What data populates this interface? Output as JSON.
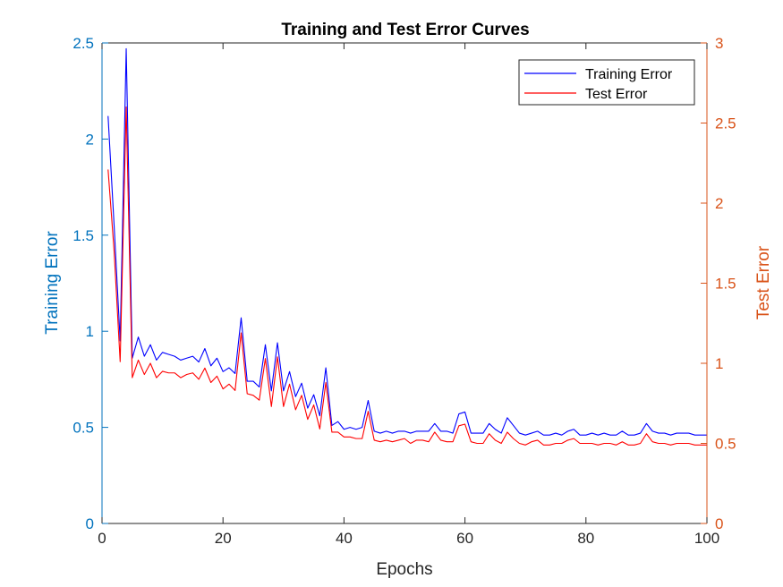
{
  "chart_data": {
    "type": "line",
    "title": "Training and Test Error Curves",
    "xlabel": "Epochs",
    "ylabel_left": "Training Error",
    "ylabel_right": "Test Error",
    "xlim": [
      0,
      100
    ],
    "ylim_left": [
      0,
      2.5
    ],
    "ylim_right": [
      0,
      3
    ],
    "x_ticks": [
      0,
      20,
      40,
      60,
      80,
      100
    ],
    "y_ticks_left": [
      0,
      0.5,
      1,
      1.5,
      2,
      2.5
    ],
    "y_ticks_right": [
      0,
      0.5,
      1,
      1.5,
      2,
      2.5,
      3
    ],
    "x_tick_labels": [
      "0",
      "20",
      "40",
      "60",
      "80",
      "100"
    ],
    "y_tick_labels_left": [
      "0",
      "0.5",
      "1",
      "1.5",
      "2",
      "2.5"
    ],
    "y_tick_labels_right": [
      "0",
      "0.5",
      "1",
      "1.5",
      "2",
      "2.5",
      "3"
    ],
    "grid": false,
    "legend_position": "top-right",
    "colors": {
      "left_axis": "#0072BD",
      "right_axis": "#D95319",
      "training": "#0000FF",
      "test": "#FF0000"
    },
    "series": [
      {
        "name": "Training Error",
        "axis": "left",
        "color": "#0000FF",
        "values": [
          2.12,
          1.55,
          0.95,
          2.47,
          0.86,
          0.97,
          0.87,
          0.93,
          0.85,
          0.89,
          0.88,
          0.87,
          0.85,
          0.86,
          0.87,
          0.84,
          0.91,
          0.82,
          0.86,
          0.79,
          0.81,
          0.78,
          1.07,
          0.74,
          0.74,
          0.71,
          0.93,
          0.69,
          0.94,
          0.69,
          0.79,
          0.66,
          0.73,
          0.6,
          0.67,
          0.56,
          0.81,
          0.51,
          0.53,
          0.49,
          0.5,
          0.49,
          0.5,
          0.64,
          0.48,
          0.47,
          0.48,
          0.47,
          0.48,
          0.48,
          0.47,
          0.48,
          0.48,
          0.48,
          0.52,
          0.48,
          0.48,
          0.47,
          0.57,
          0.58,
          0.47,
          0.47,
          0.47,
          0.52,
          0.49,
          0.47,
          0.55,
          0.51,
          0.47,
          0.46,
          0.47,
          0.48,
          0.46,
          0.46,
          0.47,
          0.46,
          0.48,
          0.49,
          0.46,
          0.46,
          0.47,
          0.46,
          0.47,
          0.46,
          0.46,
          0.48,
          0.46,
          0.46,
          0.47,
          0.52,
          0.48,
          0.47,
          0.47,
          0.46,
          0.47,
          0.47,
          0.47,
          0.46,
          0.46,
          0.46
        ]
      },
      {
        "name": "Test Error",
        "axis": "right",
        "color": "#FF0000",
        "values": [
          2.21,
          1.7,
          1.01,
          2.6,
          0.91,
          1.02,
          0.93,
          1.0,
          0.91,
          0.95,
          0.94,
          0.94,
          0.91,
          0.93,
          0.94,
          0.9,
          0.97,
          0.88,
          0.92,
          0.84,
          0.87,
          0.83,
          1.19,
          0.81,
          0.8,
          0.77,
          1.03,
          0.73,
          1.04,
          0.73,
          0.87,
          0.71,
          0.8,
          0.65,
          0.74,
          0.59,
          0.88,
          0.57,
          0.57,
          0.54,
          0.54,
          0.53,
          0.53,
          0.7,
          0.52,
          0.51,
          0.52,
          0.51,
          0.52,
          0.53,
          0.5,
          0.52,
          0.52,
          0.51,
          0.57,
          0.52,
          0.51,
          0.51,
          0.61,
          0.62,
          0.51,
          0.5,
          0.5,
          0.56,
          0.52,
          0.5,
          0.57,
          0.53,
          0.5,
          0.49,
          0.51,
          0.52,
          0.49,
          0.49,
          0.5,
          0.5,
          0.52,
          0.53,
          0.5,
          0.5,
          0.5,
          0.49,
          0.5,
          0.5,
          0.49,
          0.51,
          0.49,
          0.49,
          0.5,
          0.56,
          0.51,
          0.5,
          0.5,
          0.49,
          0.5,
          0.5,
          0.5,
          0.49,
          0.49,
          0.49
        ]
      }
    ],
    "x": [
      1,
      2,
      3,
      4,
      5,
      6,
      7,
      8,
      9,
      10,
      11,
      12,
      13,
      14,
      15,
      16,
      17,
      18,
      19,
      20,
      21,
      22,
      23,
      24,
      25,
      26,
      27,
      28,
      29,
      30,
      31,
      32,
      33,
      34,
      35,
      36,
      37,
      38,
      39,
      40,
      41,
      42,
      43,
      44,
      45,
      46,
      47,
      48,
      49,
      50,
      51,
      52,
      53,
      54,
      55,
      56,
      57,
      58,
      59,
      60,
      61,
      62,
      63,
      64,
      65,
      66,
      67,
      68,
      69,
      70,
      71,
      72,
      73,
      74,
      75,
      76,
      77,
      78,
      79,
      80,
      81,
      82,
      83,
      84,
      85,
      86,
      87,
      88,
      89,
      90,
      91,
      92,
      93,
      94,
      95,
      96,
      97,
      98,
      99,
      100
    ]
  }
}
